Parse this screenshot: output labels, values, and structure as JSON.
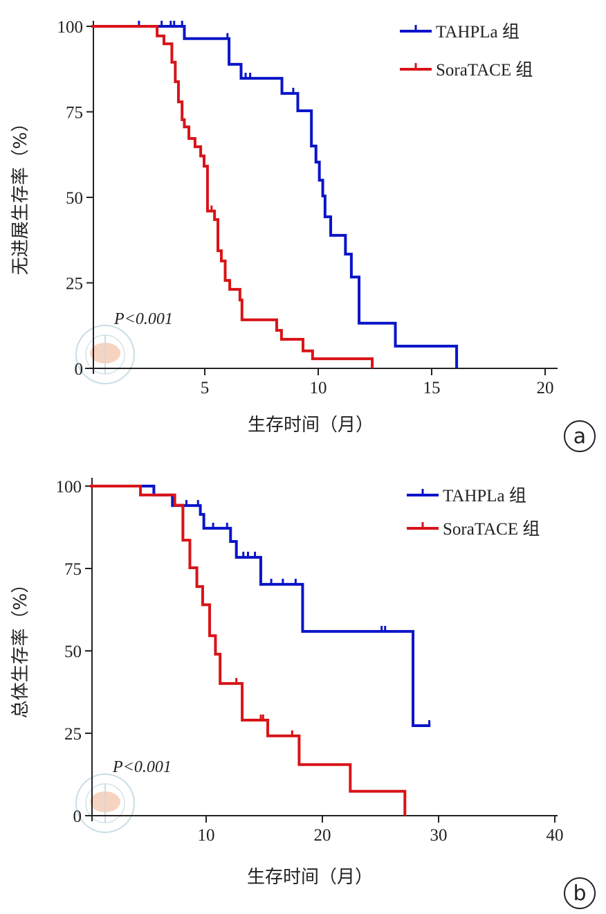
{
  "chart_data": [
    {
      "type": "line",
      "panel_label": "a",
      "ylabel": "无进展生存率（%）",
      "xlabel": "生存时间（月）",
      "xlim": [
        0,
        20.5
      ],
      "ylim": [
        0,
        100
      ],
      "xticks": [
        5,
        10,
        15,
        20
      ],
      "yticks": [
        0,
        25,
        50,
        75,
        100
      ],
      "annotation": "P<0.001",
      "legend_position": "top-right",
      "grid": false,
      "series": [
        {
          "name": "TAHPLa 组",
          "color": "#0a14c8",
          "steps": [
            [
              4.1,
              96.4
            ],
            [
              6.07,
              88.9
            ],
            [
              6.6,
              84.8
            ],
            [
              8.4,
              80.4
            ],
            [
              9.1,
              75.3
            ],
            [
              9.7,
              65
            ],
            [
              9.9,
              60.3
            ],
            [
              10.05,
              55
            ],
            [
              10.2,
              50.4
            ],
            [
              10.3,
              44.3
            ],
            [
              10.55,
              38.9
            ],
            [
              11.2,
              33.4
            ],
            [
              11.46,
              26.7
            ],
            [
              11.8,
              13.2
            ],
            [
              13.4,
              6.5
            ],
            [
              16.1,
              0
            ]
          ],
          "end": 16.1,
          "censored": [
            2.1,
            3.1,
            3.5,
            3.65,
            4.0,
            6.0,
            6.8,
            7.0,
            8.9
          ]
        },
        {
          "name": "SoraTACE 组",
          "color": "#d81418",
          "steps": [
            [
              2.9,
              97.2
            ],
            [
              3.2,
              94.9
            ],
            [
              3.55,
              89.5
            ],
            [
              3.7,
              83.8
            ],
            [
              3.84,
              77.9
            ],
            [
              4.0,
              72.7
            ],
            [
              4.1,
              70.6
            ],
            [
              4.3,
              67.2
            ],
            [
              4.57,
              64.8
            ],
            [
              4.82,
              62.1
            ],
            [
              4.97,
              59.1
            ],
            [
              5.12,
              46
            ],
            [
              5.43,
              43.5
            ],
            [
              5.58,
              34.4
            ],
            [
              5.73,
              31.4
            ],
            [
              5.9,
              25.7
            ],
            [
              6.1,
              23.1
            ],
            [
              6.55,
              20
            ],
            [
              6.64,
              14.2
            ],
            [
              8.17,
              11.1
            ],
            [
              8.38,
              8.5
            ],
            [
              9.33,
              5.1
            ],
            [
              9.75,
              2.8
            ],
            [
              12.38,
              0
            ]
          ],
          "end": 12.38,
          "censored": [
            5.3
          ]
        }
      ]
    },
    {
      "type": "line",
      "panel_label": "b",
      "ylabel": "总体生存率（%）",
      "xlabel": "生存时间（月）",
      "xlim": [
        0,
        40
      ],
      "ylim": [
        0,
        100
      ],
      "xticks": [
        10,
        20,
        30,
        40
      ],
      "yticks": [
        0,
        25,
        50,
        75,
        100
      ],
      "annotation": "P<0.001",
      "legend_position": "top-right",
      "grid": false,
      "series": [
        {
          "name": "TAHPLa 组",
          "color": "#0a14c8",
          "steps": [
            [
              5.5,
              97.3
            ],
            [
              7.1,
              94.1
            ],
            [
              9.5,
              91.4
            ],
            [
              9.8,
              87.2
            ],
            [
              12.1,
              83.2
            ],
            [
              12.6,
              78.4
            ],
            [
              14.7,
              70.2
            ],
            [
              18.3,
              55.9
            ],
            [
              27.8,
              27.3
            ]
          ],
          "end": 29.3,
          "censored": [
            8.3,
            9.3,
            10.6,
            11.8,
            13.2,
            13.6,
            14.2,
            15.6,
            16.6,
            17.7,
            25.1,
            25.4,
            29.2
          ]
        },
        {
          "name": "SoraTACE 组",
          "color": "#d81418",
          "steps": [
            [
              4.35,
              97.3
            ],
            [
              7.3,
              94.2
            ],
            [
              8.0,
              83.6
            ],
            [
              8.6,
              75.2
            ],
            [
              9.2,
              69.5
            ],
            [
              9.7,
              64
            ],
            [
              10.3,
              54.6
            ],
            [
              10.8,
              49
            ],
            [
              11.2,
              40.1
            ],
            [
              13.1,
              29
            ],
            [
              15.3,
              24.2
            ],
            [
              18.0,
              15.5
            ],
            [
              22.4,
              7.4
            ],
            [
              27.1,
              0
            ]
          ],
          "end": 27.1,
          "censored": [
            12.6,
            14.7,
            14.9,
            17.4
          ]
        }
      ]
    }
  ]
}
